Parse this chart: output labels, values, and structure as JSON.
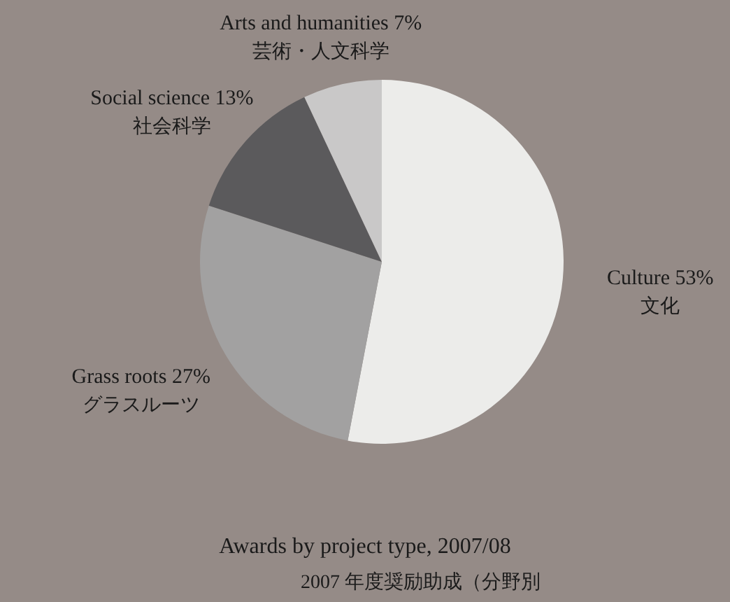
{
  "chart_data": {
    "type": "pie",
    "title": "Awards by project type, 2007/08",
    "subtitle": "2007 年度奨励助成（分野別",
    "categories": [
      "Culture\n文化",
      "Grass roots\nグラスルーツ",
      "Social science\n社会科学",
      "Arts and humanities\n芸術・人文科学"
    ],
    "values": [
      53,
      27,
      13,
      7
    ],
    "colors": [
      "#ececea",
      "#a2a1a1",
      "#5b5a5c",
      "#c9c8c8"
    ],
    "value_labels": [
      "53%",
      "27%",
      "13%",
      "7%"
    ]
  }
}
